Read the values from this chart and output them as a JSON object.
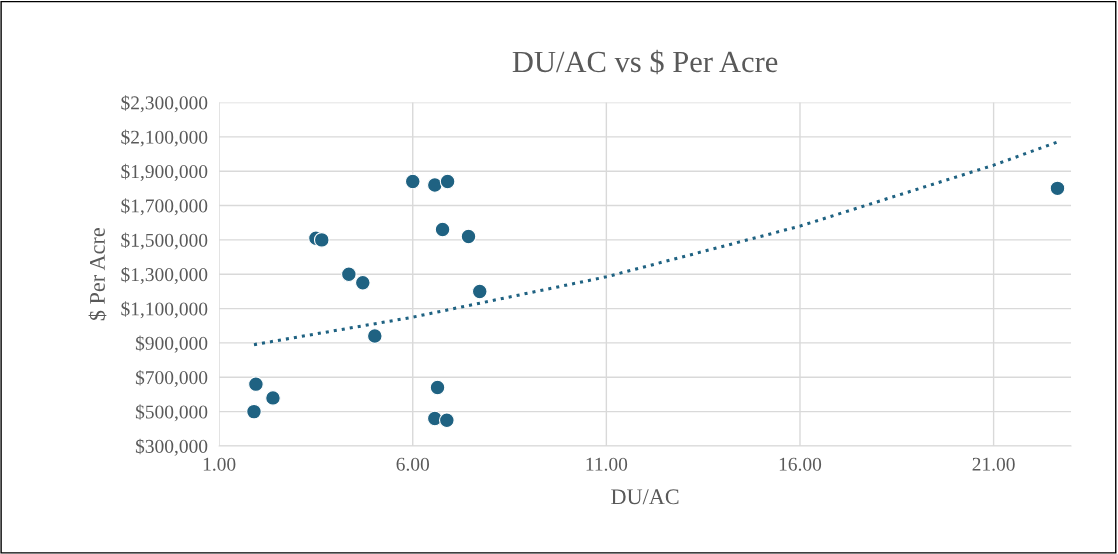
{
  "chart_data": {
    "type": "scatter",
    "title": "DU/AC vs $ Per Acre",
    "xlabel": "DU/AC",
    "ylabel": "$ Per Acre",
    "grid": true,
    "legend": false,
    "marker": "circle",
    "xlim": [
      1,
      23
    ],
    "xticks": [
      {
        "value": 1,
        "label": "1.00"
      },
      {
        "value": 6,
        "label": "6.00"
      },
      {
        "value": 11,
        "label": "11.00"
      },
      {
        "value": 16,
        "label": "16.00"
      },
      {
        "value": 21,
        "label": "21.00"
      }
    ],
    "ylim": [
      300000,
      2300000
    ],
    "yticks": [
      {
        "value": 300000,
        "label": "$300,000"
      },
      {
        "value": 500000,
        "label": "$500,000"
      },
      {
        "value": 700000,
        "label": "$700,000"
      },
      {
        "value": 900000,
        "label": "$900,000"
      },
      {
        "value": 1100000,
        "label": "$1,100,000"
      },
      {
        "value": 1300000,
        "label": "$1,300,000"
      },
      {
        "value": 1500000,
        "label": "$1,500,000"
      },
      {
        "value": 1700000,
        "label": "$1,700,000"
      },
      {
        "value": 1900000,
        "label": "$1,900,000"
      },
      {
        "value": 2100000,
        "label": "$2,100,000"
      },
      {
        "value": 2300000,
        "label": "$2,300,000"
      }
    ],
    "series": [
      {
        "color": "#1f6282",
        "x": [
          1.95,
          1.9,
          2.39,
          3.5,
          3.65,
          4.35,
          4.71,
          5.02,
          6.0,
          6.57,
          6.9,
          6.77,
          7.44,
          7.73,
          6.64,
          6.57,
          6.88,
          22.65
        ],
        "values": [
          660000,
          500000,
          580000,
          1510000,
          1500000,
          1300000,
          1250000,
          940000,
          1840000,
          1820000,
          1840000,
          1560000,
          1520000,
          1200000,
          640000,
          460000,
          450000,
          1800000
        ]
      },
      {
        "type": "line",
        "color": "#1f6282",
        "line_style": "dotted",
        "marker": "none",
        "x": [
          1.9,
          6,
          11,
          16,
          21,
          22.65
        ],
        "values": [
          890000,
          1050000,
          1285000,
          1580000,
          1935000,
          2070000
        ]
      }
    ]
  }
}
